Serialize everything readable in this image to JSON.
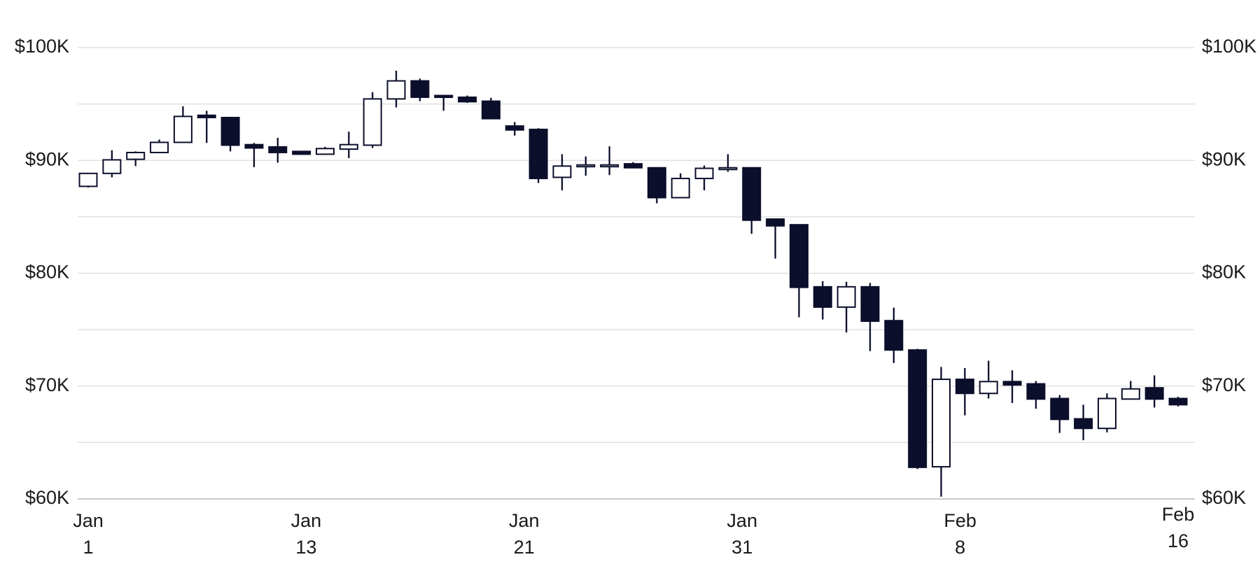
{
  "chart_data": {
    "type": "candlestick",
    "x_labels": [
      {
        "month": "Jan",
        "day": "1"
      },
      {
        "month": "Jan",
        "day": "13"
      },
      {
        "month": "Jan",
        "day": "21"
      },
      {
        "month": "Jan",
        "day": "31"
      },
      {
        "month": "Feb",
        "day": "8"
      },
      {
        "month": "Feb",
        "day": "16"
      }
    ],
    "open": [
      87700,
      88850,
      90100,
      90700,
      91600,
      94000,
      93800,
      91400,
      91200,
      90800,
      90550,
      91000,
      91350,
      95450,
      97050,
      95750,
      95600,
      95250,
      93050,
      92750,
      88500,
      89450,
      89550,
      89700,
      89350,
      86700,
      88400,
      89250,
      89350,
      84800,
      84300,
      78800,
      77000,
      78800,
      75800,
      73200,
      62850,
      70600,
      69350,
      70400,
      70200,
      68900,
      67100,
      66250,
      68850,
      69850,
      68900
    ],
    "high": [
      88900,
      90900,
      90800,
      91850,
      94800,
      94400,
      93800,
      91550,
      92000,
      90850,
      91200,
      92550,
      96050,
      97950,
      97250,
      95750,
      95750,
      95550,
      93400,
      92850,
      90550,
      90350,
      91250,
      89850,
      89350,
      88850,
      89550,
      90550,
      89350,
      84850,
      84300,
      79300,
      79250,
      79150,
      76950,
      73300,
      71700,
      71600,
      72250,
      71400,
      70450,
      69200,
      68350,
      69350,
      70450,
      70950,
      69050
    ],
    "low": [
      87600,
      88500,
      89500,
      90700,
      91600,
      91550,
      90800,
      89400,
      89800,
      90500,
      90500,
      90200,
      91100,
      94700,
      95250,
      94400,
      95100,
      93700,
      92200,
      88000,
      87350,
      88650,
      88700,
      89300,
      86200,
      86650,
      87350,
      89000,
      83500,
      81300,
      76100,
      75900,
      74750,
      73100,
      72050,
      62650,
      60200,
      67400,
      68900,
      68500,
      68000,
      65850,
      65200,
      65900,
      68850,
      68100,
      68200
    ],
    "close": [
      88850,
      90050,
      90700,
      91600,
      93900,
      93800,
      91350,
      91100,
      90700,
      90550,
      91050,
      91400,
      95450,
      97050,
      95600,
      95600,
      95200,
      93700,
      92700,
      88400,
      89500,
      89600,
      89600,
      89350,
      86700,
      88400,
      89300,
      89350,
      84700,
      84200,
      78750,
      77000,
      78800,
      75750,
      73200,
      62800,
      70600,
      69350,
      70400,
      70100,
      68850,
      67050,
      66250,
      68900,
      69750,
      68850,
      68350
    ],
    "ylim": [
      60000,
      100000
    ],
    "yticks": [
      {
        "value": 60000,
        "label": "$60K"
      },
      {
        "value": 70000,
        "label": "$70K"
      },
      {
        "value": 80000,
        "label": "$80K"
      },
      {
        "value": 90000,
        "label": "$90K"
      },
      {
        "value": 100000,
        "label": "$100K"
      }
    ],
    "minor_yticks": [
      65000,
      75000,
      85000,
      95000
    ],
    "grid": true,
    "right_axis": true,
    "up_color": "#ffffff",
    "down_color": "#0b0f2b"
  }
}
